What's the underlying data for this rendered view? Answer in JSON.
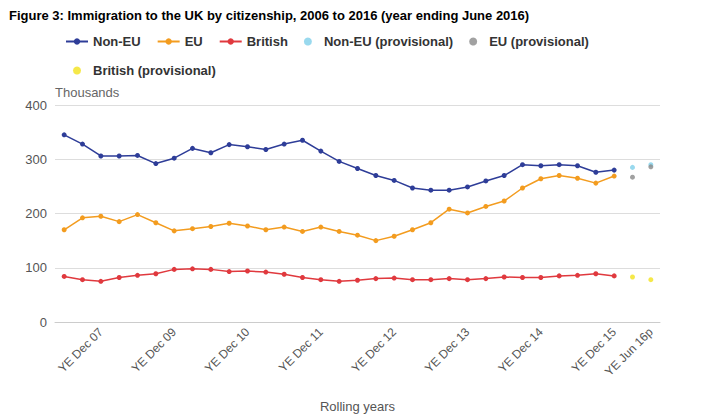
{
  "chart_data": {
    "type": "line",
    "title": "Figure 3: Immigration to the UK by citizenship, 2006 to 2016 (year ending June 2016)",
    "xlabel": "Rolling years",
    "ylabel": "Thousands",
    "categories": [
      null,
      null,
      "YE Dec 07",
      null,
      null,
      null,
      "YE Dec 09",
      null,
      null,
      null,
      "YE Dec 10",
      null,
      null,
      null,
      "YE Dec 11",
      null,
      null,
      null,
      "YE Dec 12",
      null,
      null,
      null,
      "YE Dec 13",
      null,
      null,
      null,
      "YE Dec 14",
      null,
      null,
      null,
      "YE Dec 15",
      null,
      "YE Jun 16p"
    ],
    "ylim": [
      0,
      400
    ],
    "yticks": [
      0,
      100,
      200,
      300,
      400
    ],
    "grid": true,
    "legend": "top",
    "series": [
      {
        "name": "Non-EU",
        "color": "#2e3d98",
        "marker": "circle",
        "line_style": "solid",
        "values": [
          345,
          328,
          306,
          306,
          307,
          292,
          302,
          320,
          312,
          327,
          323,
          318,
          328,
          335,
          315,
          296,
          283,
          270,
          261,
          247,
          243,
          243,
          249,
          260,
          270,
          290,
          288,
          290,
          288,
          276,
          280,
          null,
          null
        ]
      },
      {
        "name": "EU",
        "color": "#f39c1f",
        "marker": "circle",
        "line_style": "solid",
        "values": [
          170,
          192,
          195,
          185,
          198,
          183,
          168,
          172,
          176,
          182,
          177,
          170,
          175,
          167,
          175,
          167,
          160,
          150,
          158,
          170,
          183,
          208,
          201,
          213,
          223,
          247,
          264,
          270,
          265,
          256,
          269,
          null,
          null
        ]
      },
      {
        "name": "British",
        "color": "#e0393e",
        "marker": "circle",
        "line_style": "solid",
        "values": [
          84,
          78,
          75,
          82,
          86,
          89,
          97,
          98,
          97,
          93,
          94,
          92,
          88,
          82,
          78,
          75,
          77,
          80,
          81,
          78,
          78,
          80,
          78,
          80,
          83,
          82,
          82,
          85,
          86,
          89,
          85,
          null,
          null
        ]
      },
      {
        "name": "Non-EU (provisional)",
        "color": "#7fd0ea",
        "type": "scatter",
        "marker": "circle",
        "values": [
          null,
          null,
          null,
          null,
          null,
          null,
          null,
          null,
          null,
          null,
          null,
          null,
          null,
          null,
          null,
          null,
          null,
          null,
          null,
          null,
          null,
          null,
          null,
          null,
          null,
          null,
          null,
          null,
          null,
          null,
          null,
          285,
          290
        ]
      },
      {
        "name": "EU (provisional)",
        "color": "#8a8a8a",
        "type": "scatter",
        "marker": "circle",
        "values": [
          null,
          null,
          null,
          null,
          null,
          null,
          null,
          null,
          null,
          null,
          null,
          null,
          null,
          null,
          null,
          null,
          null,
          null,
          null,
          null,
          null,
          null,
          null,
          null,
          null,
          null,
          null,
          null,
          null,
          null,
          null,
          267,
          286
        ]
      },
      {
        "name": "British (provisional)",
        "color": "#f2e21b",
        "type": "scatter",
        "marker": "circle",
        "values": [
          null,
          null,
          null,
          null,
          null,
          null,
          null,
          null,
          null,
          null,
          null,
          null,
          null,
          null,
          null,
          null,
          null,
          null,
          null,
          null,
          null,
          null,
          null,
          null,
          null,
          null,
          null,
          null,
          null,
          null,
          null,
          83,
          78
        ]
      }
    ]
  }
}
